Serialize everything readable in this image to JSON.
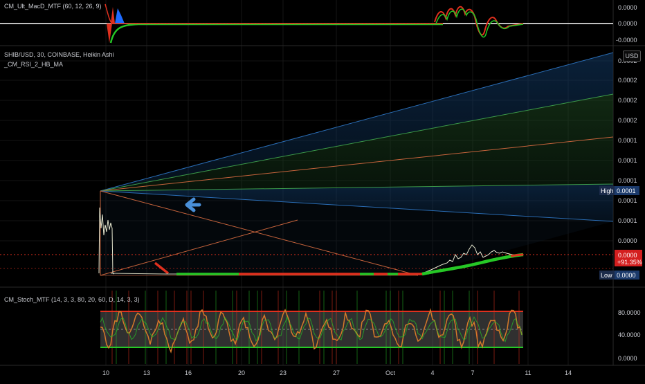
{
  "macd_panel": {
    "title": "CM_Ult_MacD_MTF (60, 12, 26, 9)",
    "scale_labels": [
      "0.0000",
      "0.0000",
      "-0.0000"
    ]
  },
  "main_panel": {
    "symbol": "SHIB/USD, 30, COINBASE, Heikin Ashi",
    "indicator": "_CM_RSI_2_HB_MA",
    "currency_button": "USD",
    "price_scale": [
      "0.0002",
      "0.0002",
      "0.0002",
      "0.0002",
      "0.0001",
      "0.0001",
      "0.0001",
      "0.0001",
      "0.0001",
      "0.0000"
    ],
    "high_badge": {
      "label": "High",
      "value": "0.0001"
    },
    "current_badge": {
      "value": "0.0000",
      "change": "+91.35%"
    },
    "low_badge": {
      "label": "Low",
      "value": "0.0000"
    }
  },
  "stoch_panel": {
    "title": "CM_Stoch_MTF (14, 3, 3, 80, 20, 60, D, 14, 3, 3)",
    "scale_labels": [
      "80.0000",
      "40.0000",
      "0.0000"
    ]
  },
  "time_axis": {
    "labels": [
      "10",
      "13",
      "16",
      "20",
      "23",
      "27",
      "Oct",
      "4",
      "7",
      "11",
      "14"
    ]
  },
  "colors": {
    "background": "#000000",
    "grid": "#1c1c1c",
    "bull": "#26c726",
    "bear": "#e0301e",
    "macd_blue": "#1e6bff",
    "fib_blue": "#2a6db5",
    "fib_green": "#3c9a4a",
    "fib_orange": "#c8643c",
    "arrow": "#4a90d9",
    "stoch_orange": "#d4792a",
    "text": "#c9cbd1"
  }
}
